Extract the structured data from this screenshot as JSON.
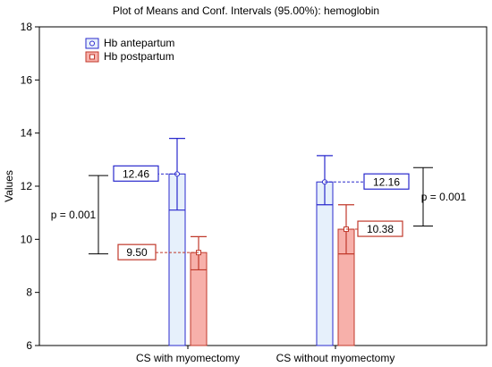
{
  "chart_data": {
    "type": "bar",
    "title": "Plot of Means and Conf. Intervals (95.00%): hemoglobin",
    "xlabel": "",
    "ylabel": "Values",
    "ylim": [
      6,
      18
    ],
    "yticks": [
      "6",
      "8",
      "10",
      "12",
      "14",
      "16",
      "18"
    ],
    "categories": [
      "CS with myomectomy",
      "CS without myomectomy"
    ],
    "series": [
      {
        "name": "Hb antepartum",
        "values": [
          12.46,
          12.16
        ],
        "ci_low": [
          11.1,
          11.3
        ],
        "ci_high": [
          13.8,
          13.15
        ],
        "labels": [
          "12.46",
          "12.16"
        ],
        "color": "#2a2acd",
        "fill": "#e6f0fb"
      },
      {
        "name": "Hb postpartum",
        "values": [
          9.5,
          10.38
        ],
        "ci_low": [
          8.85,
          9.45
        ],
        "ci_high": [
          10.1,
          11.3
        ],
        "labels": [
          "9.50",
          "10.38"
        ],
        "color": "#c0392b",
        "fill": "#f7b0aa"
      }
    ],
    "annotations": [
      {
        "text": "p = 0.001",
        "y_top": 12.4,
        "y_bottom": 9.45,
        "side": "left"
      },
      {
        "text": "p = 0.001",
        "y_top": 12.7,
        "y_bottom": 10.5,
        "side": "right"
      }
    ],
    "legend_position": "top-left",
    "grid": false
  }
}
